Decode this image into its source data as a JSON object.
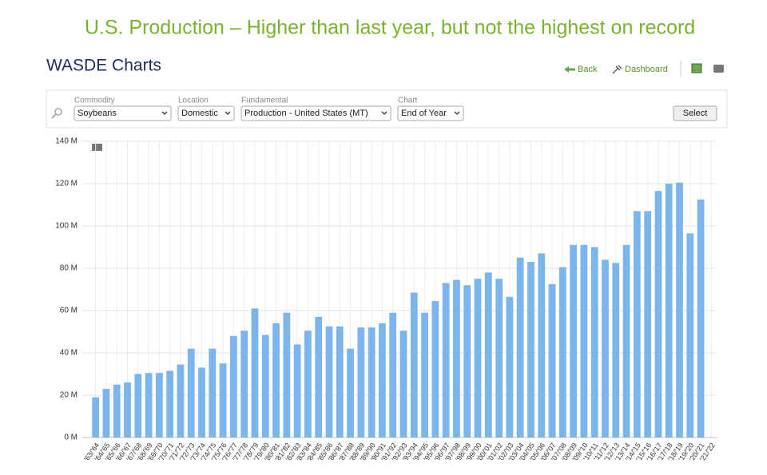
{
  "headline": "U.S. Production – Higher than last year, but not the highest on record",
  "app_title": "WASDE Charts",
  "nav": {
    "back": "Back",
    "dashboard": "Dashboard"
  },
  "filters": [
    {
      "label": "Commodity",
      "value": "Soybeans"
    },
    {
      "label": "Location",
      "value": "Domestic"
    },
    {
      "label": "Fundamental",
      "value": "Production - United States (MT)"
    },
    {
      "label": "Chart",
      "value": "End of Year"
    }
  ],
  "select_button": "Select",
  "chart_data": {
    "type": "bar",
    "color": "#7cb5ec",
    "grid": true,
    "categories": [
      "'63/'64",
      "'64/'65",
      "'65/'66",
      "'66/'67",
      "'67/'68",
      "'68/'69",
      "'69/'70",
      "'70/'71",
      "'71/'72",
      "'72/'73",
      "'73/'74",
      "'74/'75",
      "'75/'76",
      "'76/'77",
      "'77/'78",
      "'78/'79",
      "'79/'80",
      "'80/'81",
      "'81/'82",
      "'82/'83",
      "'83/'84",
      "'84/'85",
      "'85/'86",
      "'86/'87",
      "'87/'88",
      "'88/'89",
      "'89/'90",
      "'90/'91",
      "'91/'92",
      "'92/'93",
      "'93/'94",
      "'94/'95",
      "'95/'96",
      "'96/'97",
      "'97/'98",
      "'98/'99",
      "'99/'00",
      "'00/'01",
      "'01/'02",
      "'02/'03",
      "'03/'04",
      "'04/'05",
      "'05/'06",
      "'06/'07",
      "'07/'08",
      "'08/'09",
      "'09/'10",
      "'10/'11",
      "'11/'12",
      "'12/'13",
      "'13/'14",
      "'14/'15",
      "'15/'16",
      "'16/'17",
      "'17/'18",
      "'18/'19",
      "'19/'20",
      "'20/'21",
      "'21/'22"
    ],
    "values": [
      19,
      23,
      25,
      26,
      30,
      30.5,
      30.5,
      31.5,
      34.5,
      42,
      33,
      42,
      35,
      48,
      50.5,
      61,
      48.5,
      54,
      59,
      44,
      50.5,
      57,
      52.5,
      52.5,
      42,
      52,
      52,
      54,
      59,
      50.5,
      68.5,
      59,
      64.5,
      73,
      74.5,
      72,
      75,
      78,
      75,
      66.5,
      85,
      83,
      87,
      72.5,
      80.5,
      91,
      91,
      90,
      84,
      82.5,
      91,
      107,
      107,
      116.5,
      120,
      120.5,
      96.5,
      112.5,
      null
    ],
    "ylim": [
      0,
      140
    ],
    "yticks": [
      {
        "value": 0,
        "label": "0 M"
      },
      {
        "value": 20,
        "label": "20 M"
      },
      {
        "value": 40,
        "label": "40 M"
      },
      {
        "value": 60,
        "label": "60 M"
      },
      {
        "value": 80,
        "label": "80 M"
      },
      {
        "value": 100,
        "label": "100 M"
      },
      {
        "value": 120,
        "label": "120 M"
      },
      {
        "value": 140,
        "label": "140 M"
      }
    ]
  }
}
